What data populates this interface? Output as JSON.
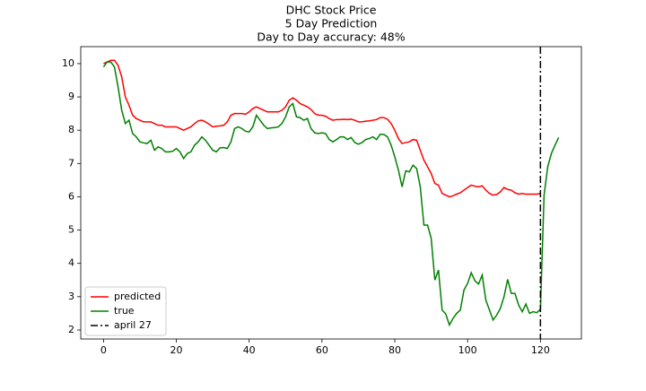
{
  "chart_data": {
    "type": "line",
    "title": [
      "DHC Stock Price",
      "5 Day Prediction",
      "Day to Day accuracy: 48%"
    ],
    "x": [
      0,
      1,
      2,
      3,
      4,
      5,
      6,
      7,
      8,
      9,
      10,
      11,
      12,
      13,
      14,
      15,
      16,
      17,
      18,
      19,
      20,
      21,
      22,
      23,
      24,
      25,
      26,
      27,
      28,
      29,
      30,
      31,
      32,
      33,
      34,
      35,
      36,
      37,
      38,
      39,
      40,
      41,
      42,
      43,
      44,
      45,
      46,
      47,
      48,
      49,
      50,
      51,
      52,
      53,
      54,
      55,
      56,
      57,
      58,
      59,
      60,
      61,
      62,
      63,
      64,
      65,
      66,
      67,
      68,
      69,
      70,
      71,
      72,
      73,
      74,
      75,
      76,
      77,
      78,
      79,
      80,
      81,
      82,
      83,
      84,
      85,
      86,
      87,
      88,
      89,
      90,
      91,
      92,
      93,
      94,
      95,
      96,
      97,
      98,
      99,
      100,
      101,
      102,
      103,
      104,
      105,
      106,
      107,
      108,
      109,
      110,
      111,
      112,
      113,
      114,
      115,
      116,
      117,
      118,
      119,
      120,
      121,
      122,
      123,
      124,
      125
    ],
    "series": [
      {
        "name": "predicted",
        "color": "#ff0000",
        "values": [
          10.0,
          10.05,
          10.1,
          10.1,
          9.95,
          9.6,
          9.0,
          8.75,
          8.45,
          8.35,
          8.3,
          8.25,
          8.25,
          8.25,
          8.2,
          8.15,
          8.15,
          8.1,
          8.1,
          8.1,
          8.1,
          8.05,
          8.0,
          8.05,
          8.1,
          8.2,
          8.28,
          8.3,
          8.25,
          8.18,
          8.1,
          8.12,
          8.13,
          8.15,
          8.25,
          8.45,
          8.5,
          8.5,
          8.5,
          8.48,
          8.55,
          8.65,
          8.7,
          8.65,
          8.6,
          8.55,
          8.55,
          8.55,
          8.55,
          8.6,
          8.7,
          8.9,
          8.97,
          8.9,
          8.8,
          8.75,
          8.7,
          8.62,
          8.5,
          8.45,
          8.45,
          8.42,
          8.35,
          8.3,
          8.32,
          8.32,
          8.33,
          8.32,
          8.33,
          8.3,
          8.25,
          8.25,
          8.27,
          8.28,
          8.3,
          8.32,
          8.38,
          8.38,
          8.33,
          8.2,
          8.0,
          7.75,
          7.6,
          7.63,
          7.65,
          7.72,
          7.7,
          7.4,
          7.1,
          6.9,
          6.7,
          6.4,
          6.35,
          6.1,
          6.05,
          6.0,
          6.03,
          6.08,
          6.12,
          6.2,
          6.28,
          6.35,
          6.32,
          6.3,
          6.33,
          6.2,
          6.1,
          6.05,
          6.07,
          6.15,
          6.28,
          6.22,
          6.2,
          6.12,
          6.08,
          6.1,
          6.08,
          6.08,
          6.08,
          6.08,
          6.1,
          null,
          null,
          null,
          null,
          null
        ]
      },
      {
        "name": "true",
        "color": "#008000",
        "values": [
          9.9,
          10.05,
          10.05,
          9.9,
          9.3,
          8.6,
          8.2,
          8.3,
          7.9,
          7.8,
          7.65,
          7.62,
          7.6,
          7.7,
          7.4,
          7.5,
          7.45,
          7.35,
          7.35,
          7.37,
          7.45,
          7.35,
          7.15,
          7.3,
          7.35,
          7.55,
          7.65,
          7.8,
          7.7,
          7.55,
          7.4,
          7.35,
          7.47,
          7.48,
          7.45,
          7.65,
          8.05,
          8.1,
          8.05,
          7.97,
          7.95,
          8.1,
          8.45,
          8.3,
          8.15,
          8.05,
          8.07,
          8.08,
          8.1,
          8.2,
          8.4,
          8.7,
          8.8,
          8.4,
          8.38,
          8.3,
          8.35,
          8.05,
          7.92,
          7.9,
          7.92,
          7.9,
          7.72,
          7.65,
          7.72,
          7.8,
          7.8,
          7.72,
          7.78,
          7.63,
          7.58,
          7.63,
          7.72,
          7.75,
          7.8,
          7.72,
          7.88,
          7.87,
          7.8,
          7.55,
          7.2,
          6.8,
          6.3,
          6.78,
          6.75,
          6.95,
          6.85,
          6.3,
          5.15,
          5.15,
          4.75,
          3.5,
          3.8,
          2.6,
          2.48,
          2.15,
          2.35,
          2.5,
          2.6,
          3.2,
          3.4,
          3.72,
          3.48,
          3.38,
          3.65,
          2.9,
          2.6,
          2.3,
          2.45,
          2.65,
          3.0,
          3.52,
          3.1,
          3.1,
          2.75,
          2.55,
          2.78,
          2.5,
          2.55,
          2.52,
          2.62,
          6.05,
          6.9,
          7.3,
          7.55,
          7.78
        ]
      }
    ],
    "vline": {
      "x": 120,
      "name": "april 27",
      "color": "#000000"
    },
    "xlim": [
      -6.25,
      131.25
    ],
    "xticks": [
      0,
      20,
      40,
      60,
      80,
      100,
      120
    ],
    "ylim": [
      1.73,
      10.51
    ],
    "yticks": [
      2,
      3,
      4,
      5,
      6,
      7,
      8,
      9,
      10
    ],
    "legend": "lower left",
    "grid": false
  }
}
